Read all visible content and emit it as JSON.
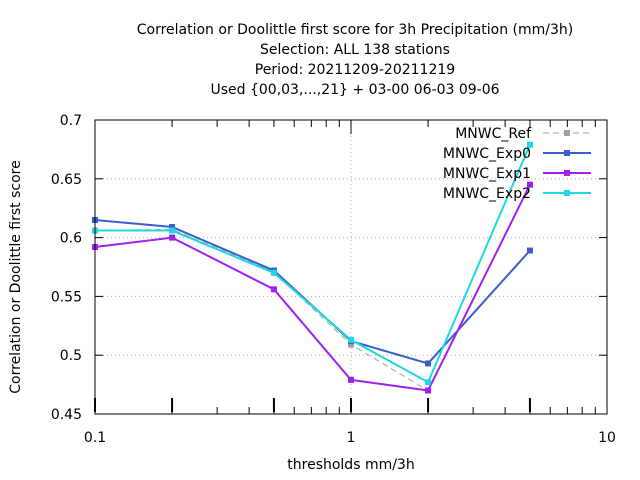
{
  "chart_data": {
    "type": "line",
    "title_lines": [
      "Correlation or Doolittle first score  for 3h Precipitation (mm/3h)",
      "Selection: ALL    138 stations",
      "Period: 20211209-20211219",
      "Used {00,03,...,21} + 03-00 06-03 09-06"
    ],
    "xlabel": "thresholds mm/3h",
    "ylabel": "Correlation or Doolittle first score",
    "x_scale": "log",
    "xlim": [
      0.1,
      10
    ],
    "ylim": [
      0.45,
      0.7
    ],
    "xticks": [
      0.1,
      1,
      10
    ],
    "xtick_labels": [
      "0.1",
      "1",
      "10"
    ],
    "yticks": [
      0.45,
      0.5,
      0.55,
      0.6,
      0.65,
      0.7
    ],
    "ytick_labels": [
      "0.45",
      "0.5",
      "0.55",
      "0.6",
      "0.65",
      "0.7"
    ],
    "grid": true,
    "legend_position": "top-right",
    "x": [
      0.1,
      0.2,
      0.5,
      1,
      2,
      5
    ],
    "series": [
      {
        "name": "MNWC_Ref",
        "color": "#a0a0a0",
        "dashed": true,
        "values": [
          0.606,
          0.607,
          0.571,
          0.509,
          0.47,
          null
        ]
      },
      {
        "name": "MNWC_Exp0",
        "color": "#3a5fcd",
        "dashed": false,
        "values": [
          0.615,
          0.609,
          0.572,
          0.512,
          0.493,
          0.589
        ]
      },
      {
        "name": "MNWC_Exp1",
        "color": "#a020f0",
        "dashed": false,
        "values": [
          0.592,
          0.6,
          0.556,
          0.479,
          0.47,
          0.645
        ]
      },
      {
        "name": "MNWC_Exp2",
        "color": "#20d8e0",
        "dashed": false,
        "values": [
          0.606,
          0.606,
          0.57,
          0.513,
          0.477,
          0.679
        ]
      }
    ]
  }
}
